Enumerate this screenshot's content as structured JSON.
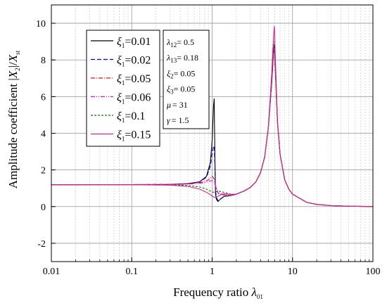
{
  "chart_data": {
    "type": "line",
    "title": "",
    "xlabel": "Frequency ratio λ01",
    "xlabel_parts": {
      "main": "Frequency ratio ",
      "symbol": "λ",
      "sub": "01"
    },
    "ylabel": "Amplitude coefficient |X2|/Xst",
    "ylabel_parts": {
      "main": "Amplitude coefficient |",
      "x": "X",
      "sub2": "2",
      "mid": "|/",
      "x2": "X",
      "sub_st": "st"
    },
    "xscale": "log",
    "xlim": [
      0.01,
      100
    ],
    "ylim": [
      -3,
      11
    ],
    "x_ticks": [
      "0.01",
      "0.1",
      "1",
      "10",
      "100"
    ],
    "x_tick_values": [
      0.01,
      0.1,
      1,
      10,
      100
    ],
    "y_ticks": [
      "-2",
      "0",
      "2",
      "4",
      "6",
      "8",
      "10"
    ],
    "y_tick_values": [
      -2,
      0,
      2,
      4,
      6,
      8,
      10
    ],
    "grid": true,
    "legend_position": "upper-left",
    "series": [
      {
        "name": "ξ1=0.01",
        "label_symbol": "ξ",
        "label_sub": "1",
        "label_value": "=0.01",
        "color": "#000000",
        "dash": "",
        "points": [
          [
            0.01,
            1.19
          ],
          [
            0.1,
            1.2
          ],
          [
            0.3,
            1.21
          ],
          [
            0.5,
            1.25
          ],
          [
            0.7,
            1.35
          ],
          [
            0.85,
            1.65
          ],
          [
            0.95,
            2.4
          ],
          [
            1.0,
            3.6
          ],
          [
            1.04,
            5.5
          ],
          [
            1.06,
            5.9
          ],
          [
            1.08,
            3.0
          ],
          [
            1.1,
            0.7
          ],
          [
            1.13,
            0.4
          ],
          [
            1.18,
            0.28
          ],
          [
            1.25,
            0.38
          ],
          [
            1.4,
            0.55
          ],
          [
            1.7,
            0.6
          ],
          [
            2,
            0.68
          ],
          [
            2.5,
            0.85
          ],
          [
            3,
            1.05
          ],
          [
            3.5,
            1.35
          ],
          [
            4,
            1.85
          ],
          [
            4.5,
            2.7
          ],
          [
            5,
            4.3
          ],
          [
            5.5,
            6.8
          ],
          [
            5.8,
            8.6
          ],
          [
            5.95,
            8.8
          ],
          [
            6.1,
            7.6
          ],
          [
            6.5,
            4.6
          ],
          [
            7,
            2.85
          ],
          [
            8,
            1.45
          ],
          [
            9,
            0.95
          ],
          [
            10,
            0.68
          ],
          [
            15,
            0.23
          ],
          [
            20,
            0.12
          ],
          [
            30,
            0.05
          ],
          [
            50,
            0.018
          ],
          [
            100,
            0.004
          ]
        ]
      },
      {
        "name": "ξ1=0.02",
        "label_symbol": "ξ",
        "label_sub": "1",
        "label_value": "=0.02",
        "color": "#0000cc",
        "dash": "6,3",
        "points": [
          [
            0.01,
            1.19
          ],
          [
            0.1,
            1.2
          ],
          [
            0.3,
            1.21
          ],
          [
            0.5,
            1.25
          ],
          [
            0.7,
            1.35
          ],
          [
            0.85,
            1.6
          ],
          [
            0.95,
            2.2
          ],
          [
            1.0,
            2.9
          ],
          [
            1.04,
            3.3
          ],
          [
            1.06,
            3.3
          ],
          [
            1.08,
            2.4
          ],
          [
            1.1,
            0.9
          ],
          [
            1.13,
            0.5
          ],
          [
            1.18,
            0.33
          ],
          [
            1.25,
            0.4
          ],
          [
            1.4,
            0.55
          ],
          [
            1.7,
            0.6
          ],
          [
            2,
            0.68
          ],
          [
            2.5,
            0.85
          ],
          [
            3,
            1.05
          ],
          [
            3.5,
            1.35
          ],
          [
            4,
            1.85
          ],
          [
            4.5,
            2.7
          ],
          [
            5,
            4.3
          ],
          [
            5.5,
            6.7
          ],
          [
            5.8,
            8.4
          ],
          [
            5.95,
            8.6
          ],
          [
            6.1,
            7.5
          ],
          [
            6.5,
            4.6
          ],
          [
            7,
            2.85
          ],
          [
            8,
            1.45
          ],
          [
            9,
            0.95
          ],
          [
            10,
            0.68
          ],
          [
            15,
            0.23
          ],
          [
            20,
            0.12
          ],
          [
            30,
            0.05
          ],
          [
            50,
            0.018
          ],
          [
            100,
            0.004
          ]
        ]
      },
      {
        "name": "ξ1=0.05",
        "label_symbol": "ξ",
        "label_sub": "1",
        "label_value": "=0.05",
        "color": "#ff0000",
        "dash": "6,2,1,2",
        "points": [
          [
            0.01,
            1.19
          ],
          [
            0.1,
            1.2
          ],
          [
            0.3,
            1.21
          ],
          [
            0.5,
            1.24
          ],
          [
            0.7,
            1.3
          ],
          [
            0.85,
            1.4
          ],
          [
            0.95,
            1.55
          ],
          [
            1.0,
            1.65
          ],
          [
            1.05,
            1.55
          ],
          [
            1.1,
            1.15
          ],
          [
            1.15,
            0.85
          ],
          [
            1.2,
            0.7
          ],
          [
            1.3,
            0.65
          ],
          [
            1.5,
            0.62
          ],
          [
            1.7,
            0.62
          ],
          [
            2,
            0.68
          ],
          [
            2.5,
            0.85
          ],
          [
            3,
            1.05
          ],
          [
            3.5,
            1.35
          ],
          [
            4,
            1.85
          ],
          [
            4.5,
            2.7
          ],
          [
            5,
            4.3
          ],
          [
            5.5,
            6.7
          ],
          [
            5.8,
            8.3
          ],
          [
            5.95,
            8.5
          ],
          [
            6.1,
            7.5
          ],
          [
            6.5,
            4.6
          ],
          [
            7,
            2.85
          ],
          [
            8,
            1.45
          ],
          [
            9,
            0.95
          ],
          [
            10,
            0.68
          ],
          [
            15,
            0.23
          ],
          [
            20,
            0.12
          ],
          [
            30,
            0.05
          ],
          [
            50,
            0.018
          ],
          [
            100,
            0.004
          ]
        ]
      },
      {
        "name": "ξ1=0.06",
        "label_symbol": "ξ",
        "label_sub": "1",
        "label_value": "=0.06",
        "color": "#ff00ff",
        "dash": "6,2,1,2,1,2",
        "points": [
          [
            0.01,
            1.19
          ],
          [
            0.1,
            1.2
          ],
          [
            0.3,
            1.2
          ],
          [
            0.5,
            1.22
          ],
          [
            0.7,
            1.27
          ],
          [
            0.85,
            1.33
          ],
          [
            0.95,
            1.4
          ],
          [
            1.0,
            1.42
          ],
          [
            1.05,
            1.35
          ],
          [
            1.1,
            1.1
          ],
          [
            1.15,
            0.9
          ],
          [
            1.2,
            0.78
          ],
          [
            1.3,
            0.7
          ],
          [
            1.5,
            0.64
          ],
          [
            1.7,
            0.63
          ],
          [
            2,
            0.68
          ],
          [
            2.5,
            0.85
          ],
          [
            3,
            1.05
          ],
          [
            3.5,
            1.35
          ],
          [
            4,
            1.85
          ],
          [
            4.5,
            2.7
          ],
          [
            5,
            4.3
          ],
          [
            5.5,
            6.8
          ],
          [
            5.8,
            8.5
          ],
          [
            5.95,
            8.7
          ],
          [
            6.1,
            7.6
          ],
          [
            6.5,
            4.6
          ],
          [
            7,
            2.85
          ],
          [
            8,
            1.45
          ],
          [
            9,
            0.95
          ],
          [
            10,
            0.68
          ],
          [
            15,
            0.23
          ],
          [
            20,
            0.12
          ],
          [
            30,
            0.05
          ],
          [
            50,
            0.018
          ],
          [
            100,
            0.004
          ]
        ]
      },
      {
        "name": "ξ1=0.1",
        "label_symbol": "ξ",
        "label_sub": "1",
        "label_value": "=0.1",
        "color": "#008000",
        "dash": "3,2",
        "points": [
          [
            0.01,
            1.19
          ],
          [
            0.1,
            1.19
          ],
          [
            0.3,
            1.18
          ],
          [
            0.5,
            1.15
          ],
          [
            0.7,
            1.07
          ],
          [
            0.85,
            0.95
          ],
          [
            0.95,
            0.85
          ],
          [
            1.0,
            0.8
          ],
          [
            1.05,
            0.78
          ],
          [
            1.1,
            0.8
          ],
          [
            1.2,
            0.85
          ],
          [
            1.4,
            0.78
          ],
          [
            1.7,
            0.68
          ],
          [
            2,
            0.68
          ],
          [
            2.5,
            0.85
          ],
          [
            3,
            1.05
          ],
          [
            3.5,
            1.35
          ],
          [
            4,
            1.85
          ],
          [
            4.5,
            2.7
          ],
          [
            5,
            4.3
          ],
          [
            5.5,
            6.9
          ],
          [
            5.8,
            8.7
          ],
          [
            5.95,
            9.0
          ],
          [
            6.1,
            7.8
          ],
          [
            6.5,
            4.6
          ],
          [
            7,
            2.85
          ],
          [
            8,
            1.45
          ],
          [
            9,
            0.95
          ],
          [
            10,
            0.68
          ],
          [
            15,
            0.23
          ],
          [
            20,
            0.12
          ],
          [
            30,
            0.05
          ],
          [
            50,
            0.018
          ],
          [
            100,
            0.004
          ]
        ]
      },
      {
        "name": "ξ1=0.15",
        "label_symbol": "ξ",
        "label_sub": "1",
        "label_value": "=0.15",
        "color": "#dd2288",
        "dash": "",
        "points": [
          [
            0.01,
            1.19
          ],
          [
            0.1,
            1.19
          ],
          [
            0.3,
            1.17
          ],
          [
            0.5,
            1.1
          ],
          [
            0.7,
            0.95
          ],
          [
            0.85,
            0.78
          ],
          [
            0.95,
            0.65
          ],
          [
            1.0,
            0.58
          ],
          [
            1.05,
            0.52
          ],
          [
            1.1,
            0.5
          ],
          [
            1.2,
            0.58
          ],
          [
            1.4,
            0.7
          ],
          [
            1.7,
            0.66
          ],
          [
            2,
            0.68
          ],
          [
            2.5,
            0.85
          ],
          [
            3,
            1.05
          ],
          [
            3.5,
            1.35
          ],
          [
            4,
            1.85
          ],
          [
            4.5,
            2.7
          ],
          [
            5,
            4.3
          ],
          [
            5.5,
            7.2
          ],
          [
            5.8,
            9.3
          ],
          [
            5.95,
            9.85
          ],
          [
            6.1,
            8.2
          ],
          [
            6.5,
            4.7
          ],
          [
            7,
            2.85
          ],
          [
            8,
            1.45
          ],
          [
            9,
            0.95
          ],
          [
            10,
            0.68
          ],
          [
            15,
            0.23
          ],
          [
            20,
            0.12
          ],
          [
            30,
            0.05
          ],
          [
            50,
            0.018
          ],
          [
            100,
            0.004
          ]
        ]
      }
    ],
    "parameters": [
      {
        "symbol": "λ",
        "sub": "12",
        "value": "= 0.5"
      },
      {
        "symbol": "λ",
        "sub": "13",
        "value": "= 0.18"
      },
      {
        "symbol": "ξ",
        "sub": "2",
        "value": "= 0.05"
      },
      {
        "symbol": "ξ",
        "sub": "3",
        "value": "= 0.05"
      },
      {
        "symbol": "μ",
        "sub": "",
        "value": "= 31"
      },
      {
        "symbol": "γ",
        "sub": "",
        "value": "= 1.5"
      }
    ]
  }
}
